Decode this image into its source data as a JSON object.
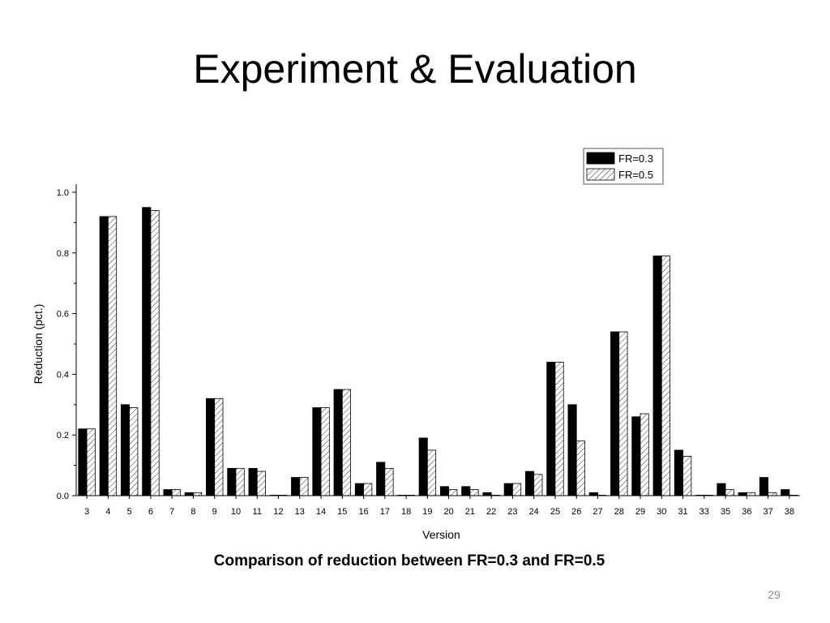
{
  "slide": {
    "title": "Experiment & Evaluation",
    "caption": "Comparison of reduction between FR=0.3 and FR=0.5",
    "page_number": "29"
  },
  "chart_data": {
    "type": "bar",
    "xlabel": "Version",
    "ylabel": "Reduction (pct.)",
    "ylim": [
      0,
      1.0
    ],
    "yticks": [
      "0.0",
      "0.2",
      "0.4",
      "0.6",
      "0.8",
      "1.0"
    ],
    "legend_position": "top-right",
    "categories": [
      "3",
      "4",
      "5",
      "6",
      "7",
      "8",
      "9",
      "10",
      "11",
      "12",
      "13",
      "14",
      "15",
      "16",
      "17",
      "18",
      "19",
      "20",
      "21",
      "22",
      "23",
      "24",
      "25",
      "26",
      "27",
      "28",
      "29",
      "30",
      "31",
      "33",
      "35",
      "36",
      "37",
      "38"
    ],
    "series": [
      {
        "name": "FR=0.3",
        "fill": "#000000",
        "values": [
          0.22,
          0.92,
          0.3,
          0.95,
          0.02,
          0.01,
          0.32,
          0.09,
          0.09,
          0.0,
          0.06,
          0.29,
          0.35,
          0.04,
          0.11,
          0.0,
          0.19,
          0.03,
          0.03,
          0.01,
          0.04,
          0.08,
          0.44,
          0.3,
          0.01,
          0.54,
          0.26,
          0.79,
          0.15,
          0.0,
          0.04,
          0.01,
          0.06,
          0.02
        ]
      },
      {
        "name": "FR=0.5",
        "fill": "hatched",
        "values": [
          0.22,
          0.92,
          0.29,
          0.94,
          0.02,
          0.01,
          0.32,
          0.09,
          0.08,
          0.0,
          0.06,
          0.29,
          0.35,
          0.04,
          0.09,
          0.0,
          0.15,
          0.02,
          0.02,
          0.0,
          0.04,
          0.07,
          0.44,
          0.18,
          0.0,
          0.54,
          0.27,
          0.79,
          0.13,
          0.0,
          0.02,
          0.01,
          0.01,
          0.0
        ]
      }
    ]
  }
}
